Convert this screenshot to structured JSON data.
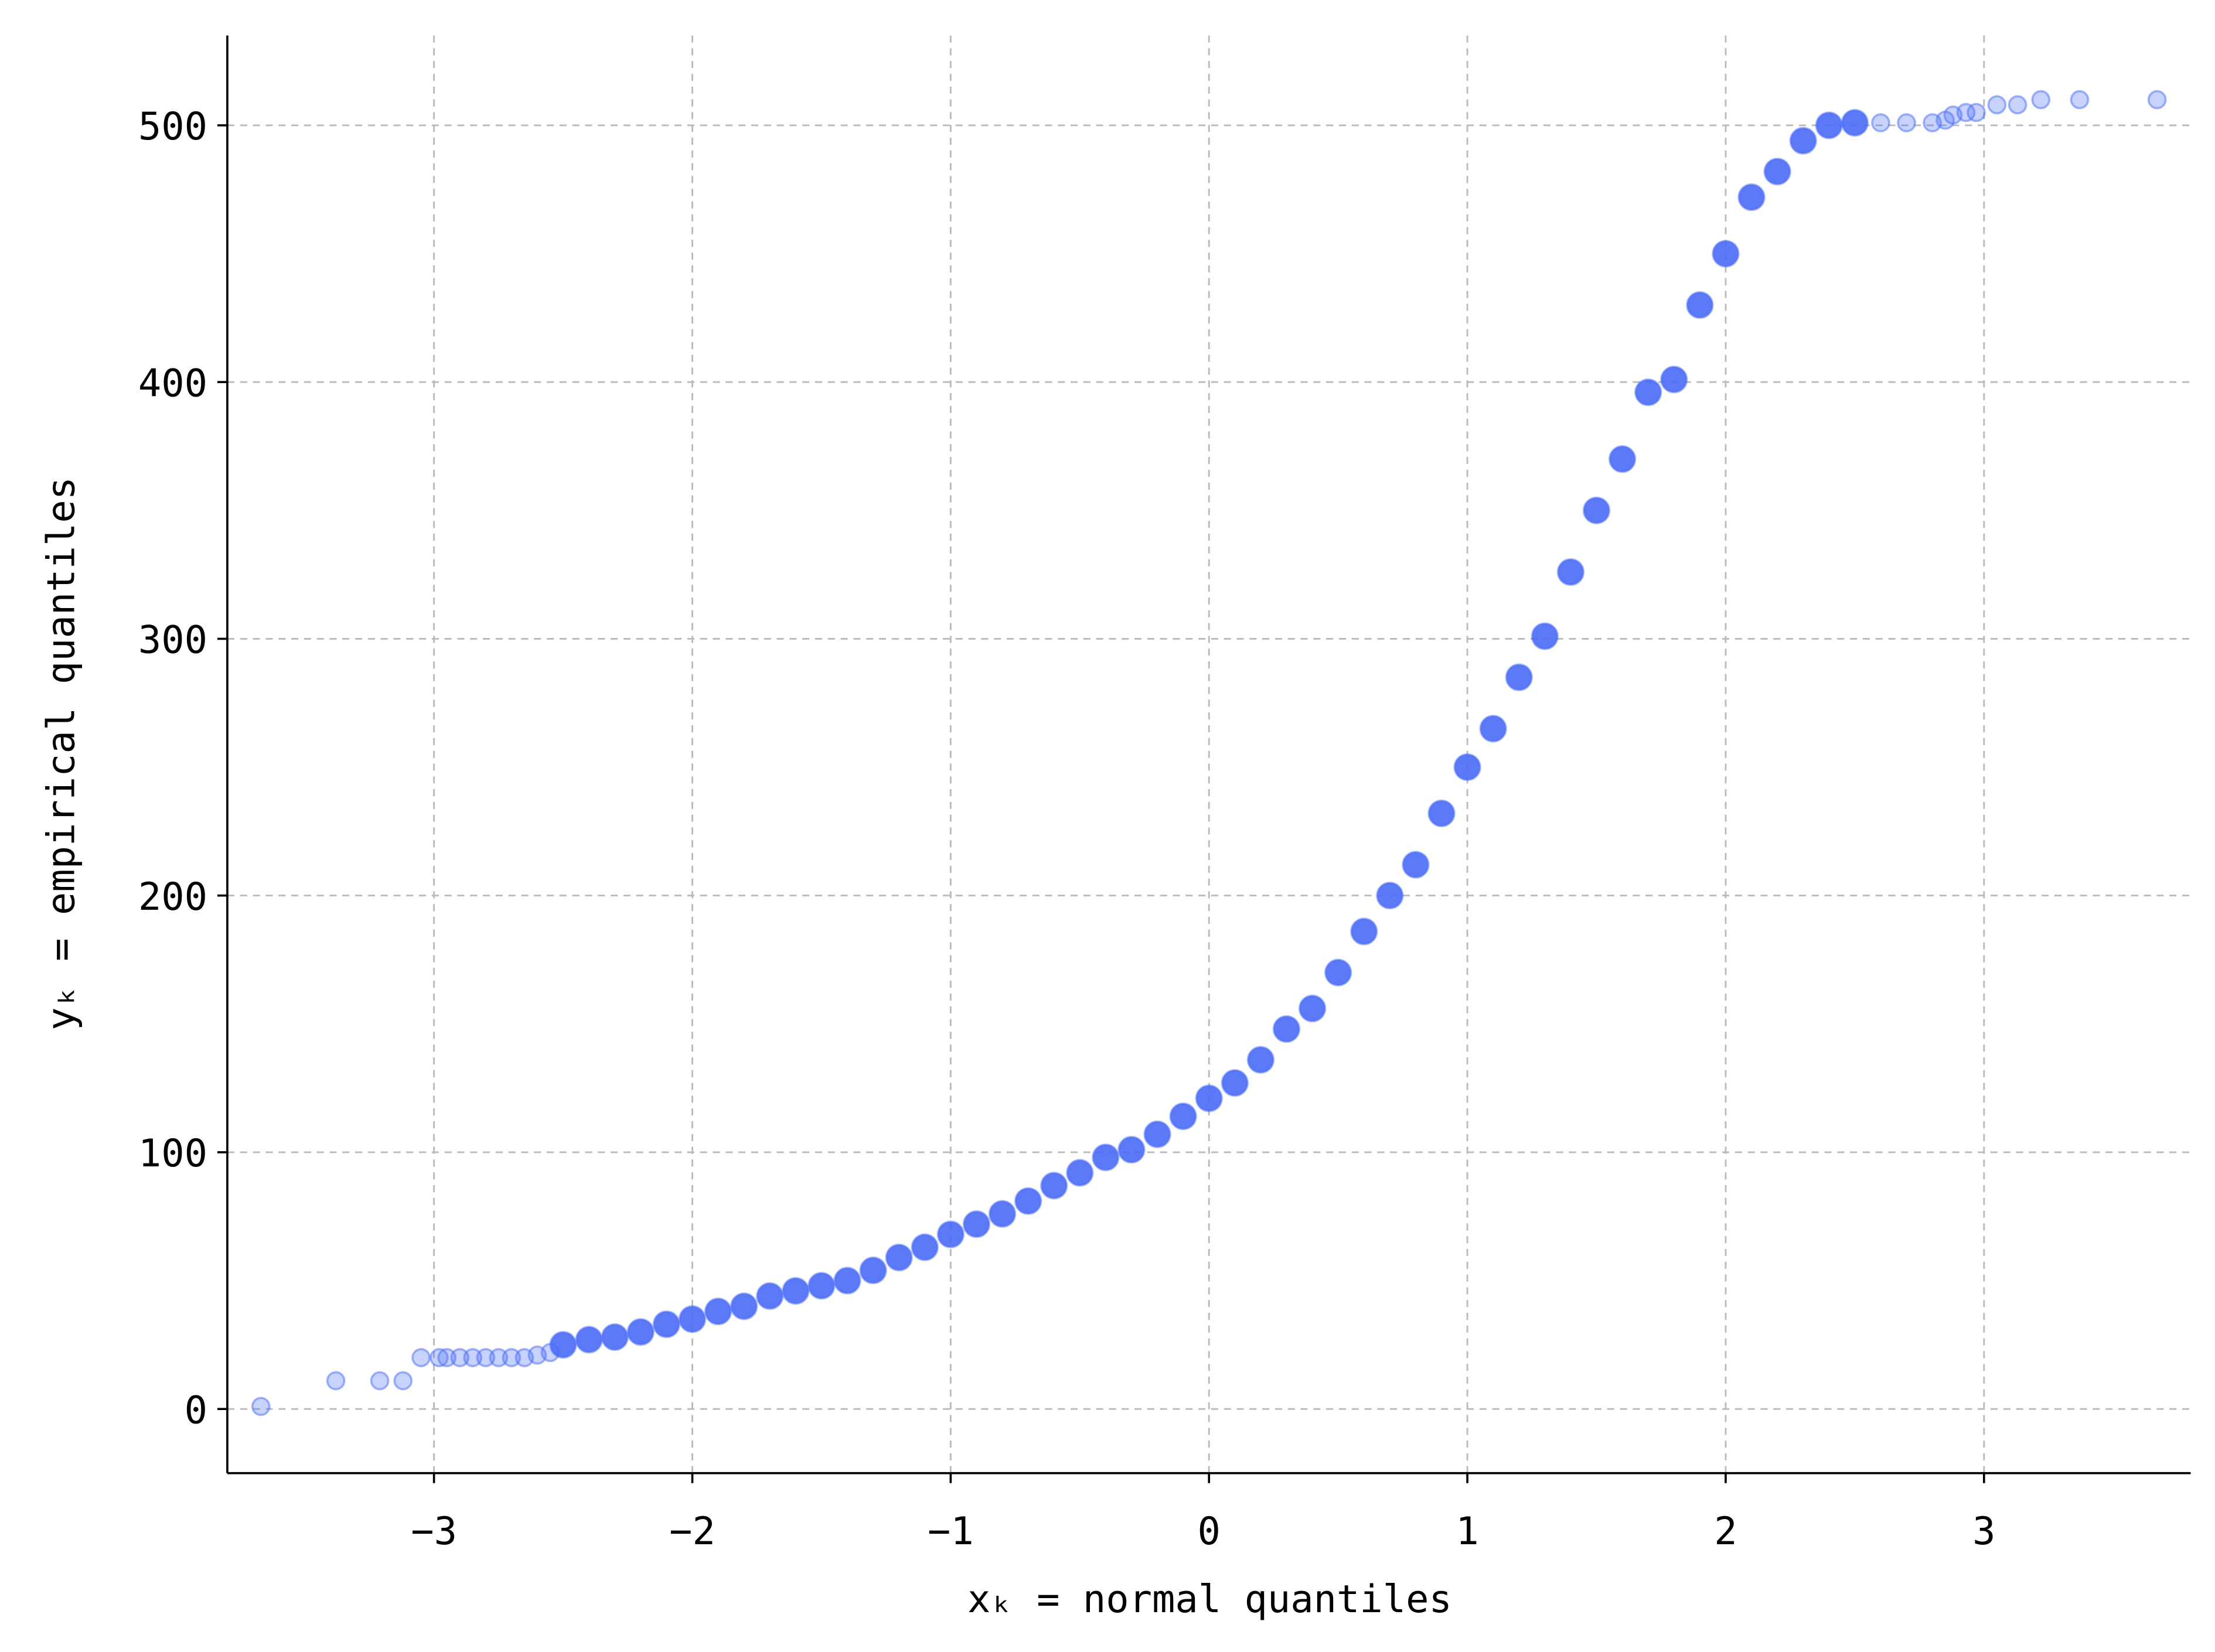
{
  "chart_data": {
    "type": "scatter",
    "xlabel": "xₖ = normal quantiles",
    "ylabel": "yₖ = empirical quantiles",
    "xlim": [
      -3.8,
      3.8
    ],
    "ylim": [
      -25,
      535
    ],
    "xticks": [
      {
        "value": -3,
        "label": "−3"
      },
      {
        "value": -2,
        "label": "−2"
      },
      {
        "value": -1,
        "label": "−1"
      },
      0,
      1,
      2,
      3
    ],
    "yticks": [
      0,
      100,
      200,
      300,
      400,
      500
    ],
    "grid": true,
    "color": "#4a6cf7",
    "x": [
      -3.67,
      -3.38,
      -3.21,
      -3.12,
      -3.05,
      -2.98,
      -2.95,
      -2.9,
      -2.85,
      -2.8,
      -2.75,
      -2.7,
      -2.65,
      -2.6,
      -2.55,
      -2.5,
      -2.4,
      -2.3,
      -2.2,
      -2.1,
      -2.0,
      -1.9,
      -1.8,
      -1.7,
      -1.6,
      -1.5,
      -1.4,
      -1.3,
      -1.2,
      -1.1,
      -1.0,
      -0.9,
      -0.8,
      -0.7,
      -0.6,
      -0.5,
      -0.4,
      -0.3,
      -0.2,
      -0.1,
      0.0,
      0.1,
      0.2,
      0.3,
      0.4,
      0.5,
      0.6,
      0.7,
      0.8,
      0.9,
      1.0,
      1.1,
      1.2,
      1.3,
      1.4,
      1.5,
      1.6,
      1.7,
      1.8,
      1.9,
      2.0,
      2.1,
      2.2,
      2.3,
      2.4,
      2.5,
      2.6,
      2.7,
      2.8,
      2.85,
      2.88,
      2.93,
      2.97,
      3.05,
      3.13,
      3.22,
      3.37,
      3.67
    ],
    "values": [
      1,
      11,
      11,
      11,
      20,
      20,
      20,
      20,
      20,
      20,
      20,
      20,
      20,
      21,
      22,
      25,
      27,
      28,
      30,
      33,
      35,
      38,
      40,
      44,
      46,
      48,
      50,
      54,
      59,
      63,
      68,
      72,
      76,
      81,
      87,
      92,
      98,
      101,
      107,
      114,
      121,
      127,
      136,
      148,
      156,
      170,
      186,
      200,
      212,
      232,
      250,
      265,
      285,
      301,
      326,
      350,
      370,
      396,
      401,
      430,
      450,
      472,
      482,
      494,
      500,
      501,
      501,
      501,
      501,
      502,
      504,
      505,
      505,
      508,
      508,
      510,
      510,
      510
    ]
  }
}
